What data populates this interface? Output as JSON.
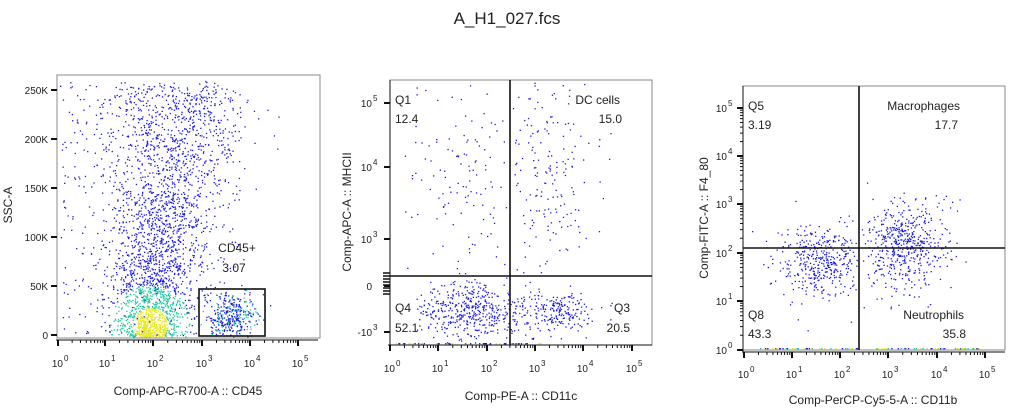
{
  "title": "A_H1_027.fcs",
  "chart_data": [
    {
      "type": "scatter",
      "xlabel": "Comp-APC-R700-A :: CD45",
      "ylabel": "SSC-A",
      "x_scale": "log",
      "y_scale": "linear",
      "x_ticks": [
        "0",
        "1",
        "2",
        "3",
        "4",
        "5"
      ],
      "x_tick_base": "10",
      "y_ticks": [
        "0",
        "50K",
        "100K",
        "150K",
        "200K",
        "250K"
      ],
      "ylim": [
        0,
        262144
      ],
      "gates": [
        {
          "name": "CD45+",
          "value": "3.07",
          "x_range": [
            800,
            20000
          ],
          "y_range": [
            0,
            50000
          ]
        }
      ]
    },
    {
      "type": "scatter",
      "xlabel": "Comp-PE-A :: CD11c",
      "ylabel": "Comp-APC-A :: MHCII",
      "x_scale": "log",
      "y_scale": "biexponential",
      "x_ticks": [
        "0",
        "1",
        "2",
        "3",
        "4",
        "5"
      ],
      "x_tick_base": "10",
      "y_ticks": [
        {
          "label": "-10",
          "exp": "3"
        },
        {
          "label": "0",
          "exp": ""
        },
        {
          "label": "10",
          "exp": "3"
        },
        {
          "label": "10",
          "exp": "4"
        },
        {
          "label": "10",
          "exp": "5"
        }
      ],
      "quadrants": [
        {
          "name": "Q1",
          "value": "12.4"
        },
        {
          "name": "DC cells",
          "value": "15.0"
        },
        {
          "name": "Q3",
          "value": "20.5"
        },
        {
          "name": "Q4",
          "value": "52.1"
        }
      ]
    },
    {
      "type": "scatter",
      "xlabel": "Comp-PerCP-Cy5-5-A :: CD11b",
      "ylabel": "Comp-FITC-A :: F4_80",
      "x_scale": "log",
      "y_scale": "log",
      "x_ticks": [
        "0",
        "1",
        "2",
        "3",
        "4",
        "5"
      ],
      "x_tick_base": "10",
      "y_ticks": [
        "0",
        "1",
        "2",
        "3",
        "4",
        "5"
      ],
      "quadrants": [
        {
          "name": "Q5",
          "value": "3.19"
        },
        {
          "name": "Macrophages",
          "value": "17.7"
        },
        {
          "name": "Neutrophils",
          "value": "35.8"
        },
        {
          "name": "Q8",
          "value": "43.3"
        }
      ]
    }
  ],
  "colors": {
    "low": "#1a1adf",
    "mid": "#1fc8a0",
    "high": "#e6e61a",
    "gate_line": "#111111"
  }
}
